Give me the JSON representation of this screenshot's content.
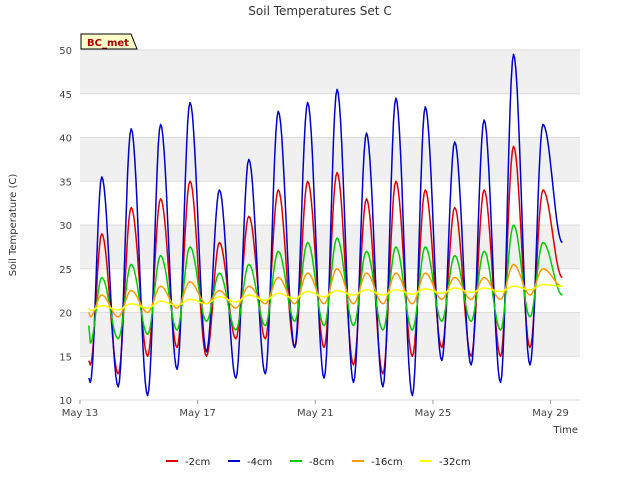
{
  "chart_data": {
    "type": "line",
    "title": "Soil Temperatures Set C",
    "xlabel": "Time",
    "ylabel": "Soil Temperature (C)",
    "badge": "BC_met",
    "x_start_date": "May 13",
    "xlim_days": [
      0,
      17.0
    ],
    "ylim": [
      10,
      50
    ],
    "yticks": [
      10,
      15,
      20,
      25,
      30,
      35,
      40,
      45,
      50
    ],
    "xticks": [
      {
        "day": 0,
        "label": "May 13"
      },
      {
        "day": 4,
        "label": "May 17"
      },
      {
        "day": 8,
        "label": "May 21"
      },
      {
        "day": 12,
        "label": "May 25"
      },
      {
        "day": 16,
        "label": "May 29"
      }
    ],
    "bands": true,
    "legend_position": "bottom",
    "series_start_day": 0.3,
    "series": [
      {
        "name": "-2cm",
        "color": "#dd0000",
        "max": [
          29,
          32,
          33,
          35,
          28,
          31,
          34,
          35,
          36,
          33,
          35,
          34,
          32,
          34,
          39,
          34
        ],
        "min": [
          14,
          13,
          15,
          16,
          15,
          17,
          17,
          16,
          16,
          14,
          13,
          15,
          16,
          15,
          15,
          16
        ],
        "start": 14.5,
        "end": 24
      },
      {
        "name": "-4cm",
        "color": "#0000cc",
        "max": [
          35.5,
          41,
          41.5,
          44,
          34,
          37.5,
          43,
          44,
          45.5,
          40.5,
          44.5,
          43.5,
          39.5,
          42,
          49.5,
          41.5
        ],
        "min": [
          12,
          11.5,
          10.5,
          13.5,
          15.5,
          12.5,
          13,
          16,
          12.5,
          12,
          11.5,
          10.5,
          14.5,
          14,
          12,
          14
        ],
        "start": 12.5,
        "end": 28
      },
      {
        "name": "-8cm",
        "color": "#00cc00",
        "max": [
          24,
          25.5,
          26.5,
          27.5,
          24.5,
          25.5,
          27,
          28,
          28.5,
          27,
          27.5,
          27.5,
          26.5,
          27,
          30,
          28
        ],
        "min": [
          16.5,
          17,
          17.5,
          18,
          19,
          18,
          18.5,
          19,
          18.5,
          18.5,
          18,
          18,
          19,
          19,
          18,
          19.5
        ],
        "start": 18.5,
        "end": 22
      },
      {
        "name": "-16cm",
        "color": "#ff9900",
        "max": [
          22,
          22.5,
          23,
          23.5,
          22.5,
          23,
          24,
          24.5,
          25,
          24.5,
          24.5,
          24.5,
          24,
          24,
          25.5,
          25
        ],
        "min": [
          19.5,
          19.5,
          20,
          20.5,
          21,
          20.5,
          21,
          21,
          21,
          21,
          21,
          21,
          21.5,
          21.5,
          21.5,
          22
        ],
        "start": 20,
        "end": 23
      },
      {
        "name": "-32cm",
        "color": "#ffff00",
        "max": [
          20.8,
          21,
          21.3,
          21.5,
          21.8,
          22,
          22.2,
          22.4,
          22.5,
          22.6,
          22.6,
          22.7,
          22.8,
          22.8,
          23,
          23.2
        ],
        "min": [
          20.2,
          20.3,
          20.5,
          20.8,
          21,
          21.2,
          21.4,
          21.6,
          21.8,
          22,
          22,
          22.1,
          22.2,
          22.3,
          22.4,
          22.6
        ],
        "start": 20.5,
        "end": 23
      }
    ]
  }
}
